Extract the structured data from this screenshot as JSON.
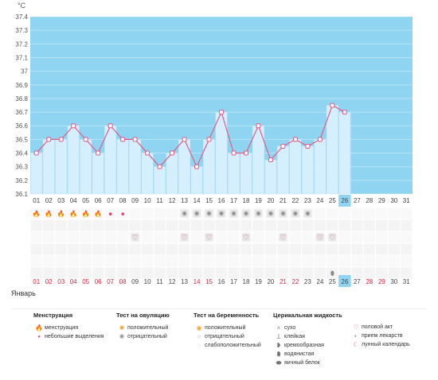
{
  "chart_data": {
    "type": "line",
    "y_unit": "°С",
    "ylim": [
      36.1,
      37.4
    ],
    "y_ticks": [
      "37.4",
      "37.3",
      "37.2",
      "37.1",
      "37",
      "36.9",
      "36.8",
      "36.7",
      "36.6",
      "36.5",
      "36.4",
      "36.3",
      "36.2",
      "36.1"
    ],
    "x": [
      "01",
      "02",
      "03",
      "04",
      "05",
      "06",
      "07",
      "08",
      "09",
      "10",
      "11",
      "12",
      "13",
      "14",
      "15",
      "16",
      "17",
      "18",
      "19",
      "20",
      "21",
      "22",
      "23",
      "24",
      "25",
      "26"
    ],
    "bottom_days": [
      "01",
      "02",
      "03",
      "04",
      "05",
      "06",
      "07",
      "08",
      "09",
      "10",
      "11",
      "12",
      "13",
      "14",
      "15",
      "16",
      "17",
      "18",
      "19",
      "20",
      "21",
      "22",
      "23",
      "24",
      "25",
      "26",
      "27",
      "28",
      "29",
      "30",
      "31"
    ],
    "red_days": [
      "01",
      "02",
      "03",
      "04",
      "05",
      "06",
      "07",
      "08",
      "14",
      "15",
      "21",
      "22",
      "28",
      "29"
    ],
    "today": "26",
    "values": [
      36.4,
      36.5,
      36.5,
      36.6,
      36.5,
      36.4,
      36.6,
      36.5,
      36.5,
      36.4,
      36.3,
      36.4,
      36.5,
      36.3,
      36.5,
      36.7,
      36.4,
      36.4,
      36.6,
      36.35,
      36.45,
      36.5,
      36.45,
      36.5,
      36.75,
      36.7
    ],
    "grid": true,
    "colors": {
      "plot_bg": "#8fd5f2",
      "bar": "#d6efff",
      "line": "#e35b87",
      "today": "#8fd5f2"
    }
  },
  "markers": {
    "menstruation_large_days": [
      1,
      2,
      3,
      4,
      5,
      6
    ],
    "menstruation_small_days": [
      7,
      8
    ],
    "ovulation_negative_days": [
      13,
      14,
      15,
      16,
      17,
      18,
      19,
      20,
      21,
      22,
      23
    ],
    "sex_days": [
      9,
      13,
      15,
      18,
      21,
      24,
      25
    ],
    "cervical_watery_days": [
      25
    ]
  },
  "month": "Январь",
  "legend": {
    "menstruation": {
      "title": "Менструация",
      "items": [
        "менструация",
        "небольшие выделения"
      ]
    },
    "ovulation": {
      "title": "Тест на овуляцию",
      "items": [
        "положительный",
        "отрицательный"
      ]
    },
    "pregnancy": {
      "title": "Тест на беременность",
      "items": [
        "положительный",
        "отрицательный",
        "слабоположительный"
      ]
    },
    "cervical": {
      "title": "Церикальная жидкость",
      "items": [
        "сухо",
        "клейкая",
        "кремообразная",
        "водянистая",
        "яичный белок"
      ]
    },
    "other": {
      "items": [
        "половой акт",
        "прием лекарств",
        "лунный календарь"
      ]
    }
  }
}
